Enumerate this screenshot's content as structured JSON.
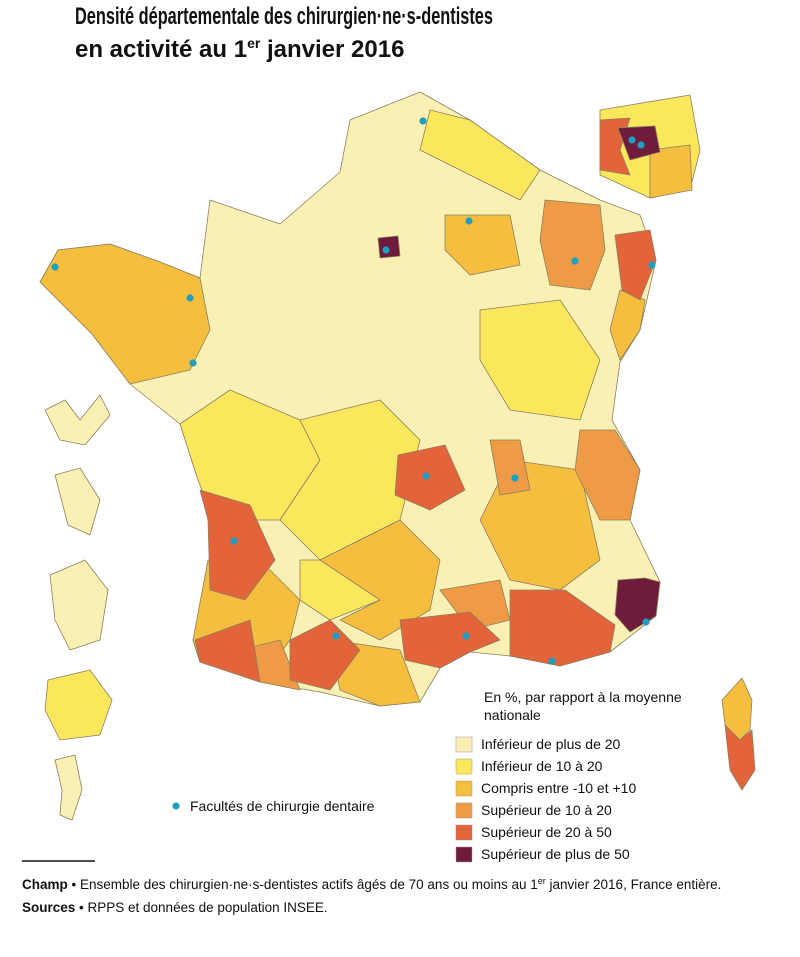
{
  "title": {
    "line1": "Densité départementale des chirurgien·ne·s-dentistes",
    "line2_start": "en activité au 1",
    "line2_sup": "er",
    "line2_end": " janvier 2016"
  },
  "legend": {
    "title_line1": "En %, par rapport à la moyenne",
    "title_line2": "nationale",
    "items": [
      {
        "label": "Inférieur de plus de 20",
        "color": "#faf0b4"
      },
      {
        "label": "Inférieur de 10 à 20",
        "color": "#fbe75c"
      },
      {
        "label": "Compris entre -10 et +10",
        "color": "#f6be3e"
      },
      {
        "label": "Supérieur de 10 à 20",
        "color": "#ef9a44"
      },
      {
        "label": "Supérieur de 20 à 50",
        "color": "#e3633a"
      },
      {
        "label": "Supérieur de plus de 50",
        "color": "#6e1b3c"
      }
    ],
    "faculty_label": "Facultés de chirurgie dentaire",
    "faculty_color": "#1e9fc0"
  },
  "notes": {
    "champ_label": "Champ",
    "champ_start": " • Ensemble des chirurgien·ne·s-dentistes actifs âgés de 70 ans ou moins au 1",
    "champ_sup": "er",
    "champ_end": " janvier 2016, France entière.",
    "sources_label": "Sources",
    "sources_text": " • RPPS et données de population INSEE."
  }
}
